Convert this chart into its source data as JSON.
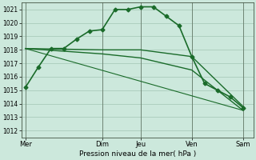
{
  "background_color": "#cce8dc",
  "grid_color": "#aaccbb",
  "line_color": "#1a6b2a",
  "xlabel": "Pression niveau de la mer( hPa )",
  "ylim": [
    1011.5,
    1021.5
  ],
  "yticks": [
    1012,
    1013,
    1014,
    1015,
    1016,
    1017,
    1018,
    1019,
    1020,
    1021
  ],
  "xtick_labels": [
    "Mer",
    "Dim",
    "Jeu",
    "Ven",
    "Sam"
  ],
  "xtick_positions": [
    0,
    6,
    9,
    13,
    17
  ],
  "xlim": [
    -0.3,
    17.8
  ],
  "series": [
    {
      "x": [
        0,
        1,
        2,
        3,
        4,
        5,
        6,
        7,
        8,
        9,
        10,
        11,
        12,
        13,
        14,
        15,
        16,
        17
      ],
      "y": [
        1015.2,
        1016.7,
        1018.1,
        1018.1,
        1018.8,
        1019.4,
        1019.5,
        1021.0,
        1021.0,
        1021.2,
        1021.2,
        1020.5,
        1019.8,
        1017.5,
        1015.5,
        1015.0,
        1014.5,
        1013.7
      ],
      "marker": "D",
      "markersize": 2.5,
      "linewidth": 1.2
    },
    {
      "x": [
        0,
        6,
        9,
        13,
        17
      ],
      "y": [
        1018.1,
        1018.0,
        1018.0,
        1017.5,
        1013.8
      ],
      "marker": null,
      "markersize": 0,
      "linewidth": 1.0
    },
    {
      "x": [
        0,
        6,
        9,
        13,
        17
      ],
      "y": [
        1018.1,
        1017.7,
        1017.4,
        1016.5,
        1013.5
      ],
      "marker": null,
      "markersize": 0,
      "linewidth": 1.0
    },
    {
      "x": [
        0,
        17
      ],
      "y": [
        1018.1,
        1013.5
      ],
      "marker": null,
      "markersize": 0,
      "linewidth": 0.8
    }
  ],
  "vlines": [
    0,
    6,
    9,
    13,
    17
  ],
  "vline_color": "#556655",
  "vline_alpha": 0.7,
  "ytick_fontsize": 5.5,
  "xtick_fontsize": 6.0,
  "xlabel_fontsize": 6.5
}
